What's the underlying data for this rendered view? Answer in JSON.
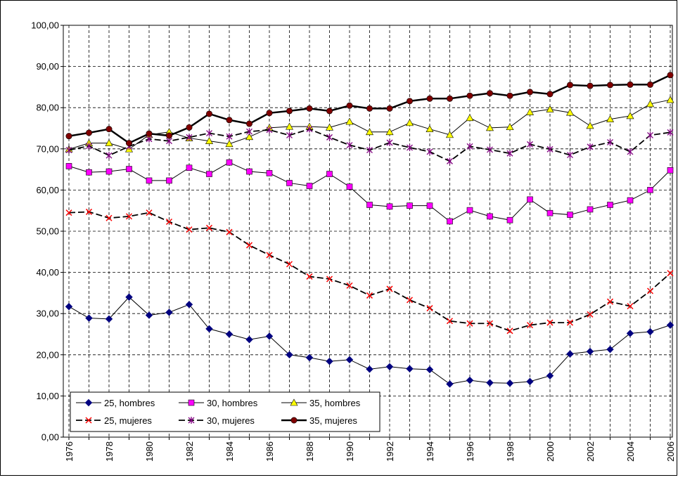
{
  "chart_data": {
    "type": "line",
    "categories": [
      "1976",
      null,
      "1978",
      null,
      "1980",
      null,
      "1982",
      null,
      "1984",
      null,
      "1986",
      null,
      "1988",
      null,
      "1990",
      null,
      "1992",
      null,
      "1994",
      null,
      "1996",
      null,
      "1998",
      null,
      "2000",
      null,
      "2002",
      null,
      "2004",
      null,
      "2006"
    ],
    "ylim": [
      0,
      100
    ],
    "yticks": [
      {
        "value": 0,
        "label": "0,00"
      },
      {
        "value": 10,
        "label": "10,00"
      },
      {
        "value": 20,
        "label": "20,00"
      },
      {
        "value": 30,
        "label": "30,00"
      },
      {
        "value": 40,
        "label": "40,00"
      },
      {
        "value": 50,
        "label": "50,00"
      },
      {
        "value": 60,
        "label": "60,00"
      },
      {
        "value": 70,
        "label": "70,00"
      },
      {
        "value": 80,
        "label": "80,00"
      },
      {
        "value": 90,
        "label": "90,00"
      },
      {
        "value": 100,
        "label": "100,00"
      }
    ],
    "grid": true,
    "legend": "lower left",
    "series": [
      {
        "name": "25, hombres",
        "color": "#000080",
        "marker": "diamond",
        "dashed": false,
        "values": [
          31.7,
          28.9,
          28.7,
          34.0,
          29.6,
          30.3,
          32.2,
          26.3,
          25.0,
          23.7,
          24.5,
          20.0,
          19.3,
          18.4,
          18.8,
          16.5,
          17.1,
          16.6,
          16.4,
          12.9,
          13.8,
          13.2,
          13.1,
          13.5,
          14.9,
          20.2,
          20.8,
          21.3,
          25.2,
          25.6,
          27.2
        ]
      },
      {
        "name": "30, hombres",
        "color": "#ff00ff",
        "marker": "square",
        "dashed": false,
        "values": [
          65.8,
          64.3,
          64.5,
          65.1,
          62.3,
          62.3,
          65.4,
          63.9,
          66.7,
          64.5,
          64.1,
          61.7,
          61.0,
          63.9,
          60.8,
          56.4,
          56.0,
          56.2,
          56.2,
          52.4,
          55.1,
          53.6,
          52.7,
          57.7,
          54.4,
          54.0,
          55.3,
          56.4,
          57.5,
          60.0,
          64.8
        ]
      },
      {
        "name": "35, hombres",
        "color": "#ffff00",
        "marker": "triangle",
        "dashed": false,
        "values": [
          69.9,
          71.4,
          71.4,
          69.9,
          73.4,
          74.1,
          72.6,
          71.9,
          71.2,
          72.9,
          75.1,
          75.4,
          75.4,
          75.2,
          76.6,
          74.1,
          74.1,
          76.3,
          74.8,
          73.4,
          77.5,
          75.1,
          75.3,
          78.9,
          79.6,
          78.8,
          75.6,
          77.2,
          78.0,
          80.9,
          81.9
        ]
      },
      {
        "name": "25, mujeres",
        "color": "#ff0000",
        "marker": "x",
        "dashed": true,
        "values": [
          54.5,
          54.7,
          53.2,
          53.6,
          54.5,
          52.3,
          50.4,
          50.8,
          49.8,
          46.6,
          44.2,
          42.0,
          39.0,
          38.4,
          36.8,
          34.4,
          36.0,
          33.3,
          31.3,
          28.2,
          27.6,
          27.6,
          25.8,
          27.2,
          27.8,
          27.8,
          29.8,
          32.9,
          31.8,
          35.5,
          39.8
        ]
      },
      {
        "name": "30, mujeres",
        "color": "#800080",
        "marker": "asterisk",
        "dashed": true,
        "values": [
          69.7,
          70.7,
          68.4,
          70.6,
          72.4,
          71.9,
          72.8,
          73.8,
          73.0,
          74.2,
          74.6,
          73.3,
          74.8,
          72.8,
          70.9,
          69.7,
          71.5,
          70.3,
          69.3,
          67.0,
          70.6,
          69.8,
          68.9,
          71.1,
          69.9,
          68.5,
          70.5,
          71.6,
          69.3,
          73.3,
          74.0
        ]
      },
      {
        "name": "35, mujeres",
        "color": "#800000",
        "marker": "circle",
        "dashed": false,
        "thick": true,
        "values": [
          73.1,
          73.9,
          74.8,
          71.4,
          73.7,
          73.2,
          75.2,
          78.5,
          77.0,
          76.1,
          78.7,
          79.2,
          79.8,
          79.2,
          80.5,
          79.8,
          79.8,
          81.6,
          82.2,
          82.2,
          82.9,
          83.5,
          82.9,
          83.8,
          83.3,
          85.5,
          85.3,
          85.5,
          85.6,
          85.6,
          87.9
        ]
      }
    ]
  }
}
